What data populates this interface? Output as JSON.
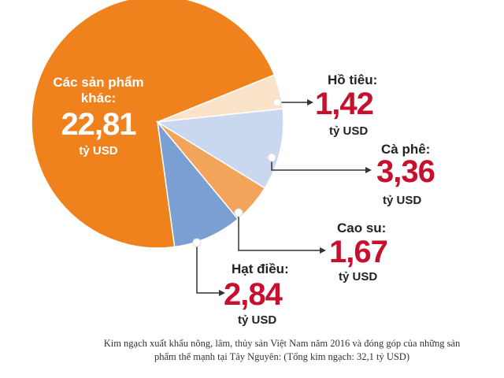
{
  "chart_data": {
    "type": "pie",
    "categories": [
      "Các sản phẩm khác:",
      "Hồ tiêu:",
      "Cà phê:",
      "Cao su:",
      "Hạt điều:"
    ],
    "values": [
      22.81,
      1.42,
      3.36,
      1.67,
      2.84
    ],
    "value_labels": [
      "22,81",
      "1,42",
      "3,36",
      "1,67",
      "2,84"
    ],
    "unit": "tỷ USD",
    "colors": [
      "#f0821e",
      "#fbe3c9",
      "#c9d8ef",
      "#f2a55a",
      "#7a9fd3"
    ],
    "caption": "Kim ngạch xuất khẩu nông, lâm, thủy sản Việt Nam năm 2016 và đóng góp của những sản phẩm thế mạnh tại Tây Nguyên: (Tổng kim ngạch: 32,1 tỷ USD)"
  }
}
